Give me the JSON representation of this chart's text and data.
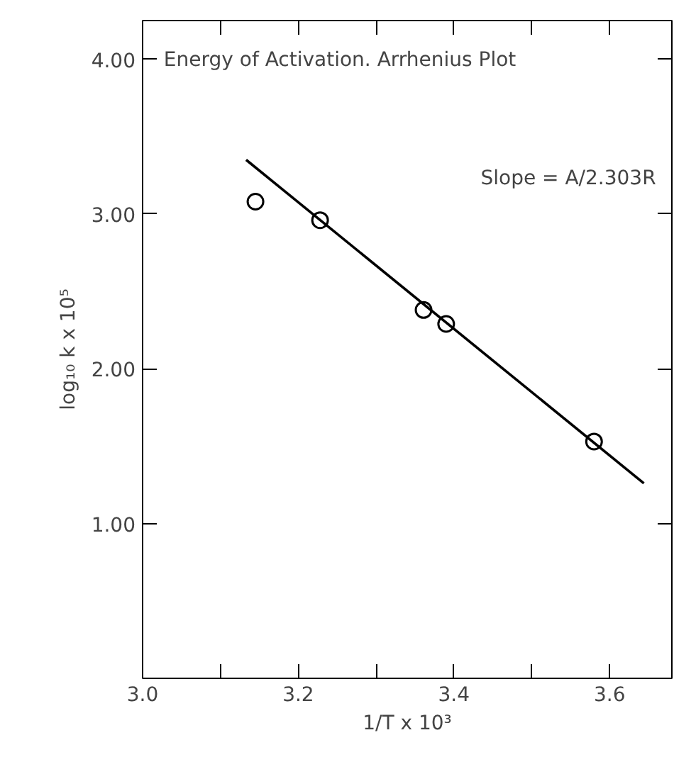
{
  "chart_data": {
    "type": "scatter",
    "title": "Energy of Activation. Arrhenius Plot",
    "xlabel": "1/T x 10³",
    "ylabel": "log₁₀ k x 10⁵",
    "annotations": [
      "Slope = A/2.303R"
    ],
    "series": [
      {
        "color": "#000000",
        "marker": "circle",
        "x": [
          3.145,
          3.228,
          3.361,
          3.39,
          3.58
        ],
        "values": [
          3.08,
          2.96,
          2.38,
          2.29,
          1.53
        ]
      },
      {
        "type": "line",
        "color": "#000000",
        "x": [
          3.133,
          3.644
        ],
        "values": [
          3.35,
          1.26
        ]
      }
    ],
    "xlim": [
      3.0,
      3.68
    ],
    "ylim": [
      0,
      4.25
    ],
    "xticks": [
      {
        "value": 3.0,
        "label": "3.0"
      },
      {
        "value": 3.1,
        "label": null
      },
      {
        "value": 3.2,
        "label": "3.2"
      },
      {
        "value": 3.3,
        "label": null
      },
      {
        "value": 3.4,
        "label": "3.4"
      },
      {
        "value": 3.5,
        "label": null
      },
      {
        "value": 3.6,
        "label": "3.6"
      }
    ],
    "yticks": [
      {
        "value": 1,
        "label": "1.00"
      },
      {
        "value": 2,
        "label": "2.00"
      },
      {
        "value": 3,
        "label": "3.00"
      },
      {
        "value": 4,
        "label": "4.00"
      }
    ],
    "grid": false
  }
}
